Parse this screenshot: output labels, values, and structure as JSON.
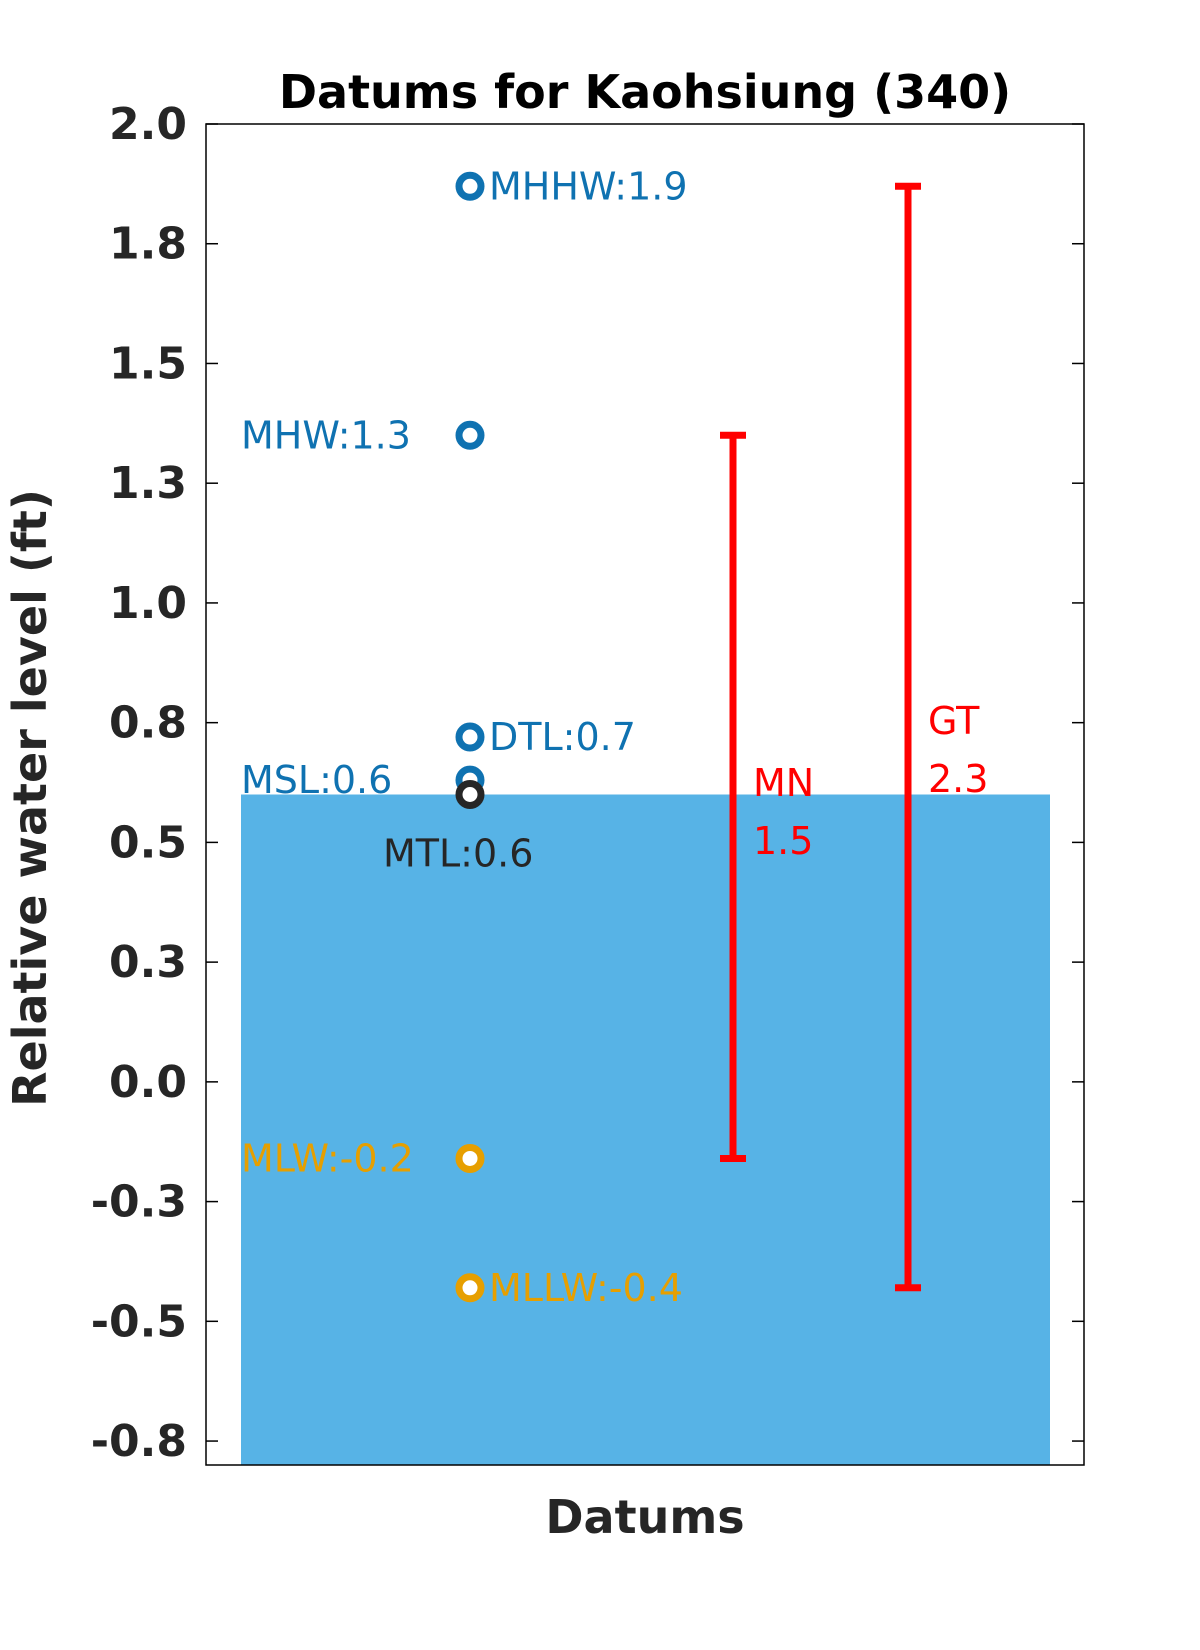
{
  "chart_data": {
    "type": "scatter",
    "title": "Datums for Kaohsiung (340)",
    "xlabel": "Datums",
    "ylabel": "Relative water level (ft)",
    "ylim": [
      -0.8,
      2.0
    ],
    "yticks": [
      {
        "value": 2.0,
        "label": "2.0"
      },
      {
        "value": 1.75,
        "label": "1.8"
      },
      {
        "value": 1.5,
        "label": "1.5"
      },
      {
        "value": 1.25,
        "label": "1.3"
      },
      {
        "value": 1.0,
        "label": "1.0"
      },
      {
        "value": 0.75,
        "label": "0.8"
      },
      {
        "value": 0.5,
        "label": "0.5"
      },
      {
        "value": 0.25,
        "label": "0.3"
      },
      {
        "value": 0.0,
        "label": "0.0"
      },
      {
        "value": -0.25,
        "label": "-0.3"
      },
      {
        "value": -0.5,
        "label": "-0.5"
      },
      {
        "value": -0.75,
        "label": "-0.8"
      }
    ],
    "bar": {
      "top": 0.6,
      "bottom": -0.8,
      "color": "#57b3e6"
    },
    "datums": [
      {
        "name": "MHHW",
        "value": 1.87,
        "label": "MHHW:1.9",
        "color": "#0f72b1",
        "label_side": "right"
      },
      {
        "name": "MHW",
        "value": 1.35,
        "label": "MHW:1.3",
        "color": "#0f72b1",
        "label_side": "left"
      },
      {
        "name": "DTL",
        "value": 0.72,
        "label": "DTL:0.7",
        "color": "#0f72b1",
        "label_side": "right"
      },
      {
        "name": "MSL",
        "value": 0.63,
        "label": "MSL:0.6",
        "color": "#0f72b1",
        "label_side": "left"
      },
      {
        "name": "MTL",
        "value": 0.6,
        "label": "MTL:0.6",
        "color": "#262626",
        "label_side": "below"
      },
      {
        "name": "MLW",
        "value": -0.16,
        "label": "MLW:-0.2",
        "color": "#e69f00",
        "label_side": "left"
      },
      {
        "name": "MLLW",
        "value": -0.43,
        "label": "MLLW:-0.4",
        "color": "#e69f00",
        "label_side": "right"
      }
    ],
    "ranges": [
      {
        "name": "MN",
        "from": -0.16,
        "to": 1.35,
        "label_line1": "MN",
        "label_line2": "1.5",
        "color": "#ff0000"
      },
      {
        "name": "GT",
        "from": -0.43,
        "to": 1.87,
        "label_line1": "GT",
        "label_line2": "2.3",
        "color": "#ff0000"
      }
    ],
    "grid": false,
    "legend": "none"
  }
}
